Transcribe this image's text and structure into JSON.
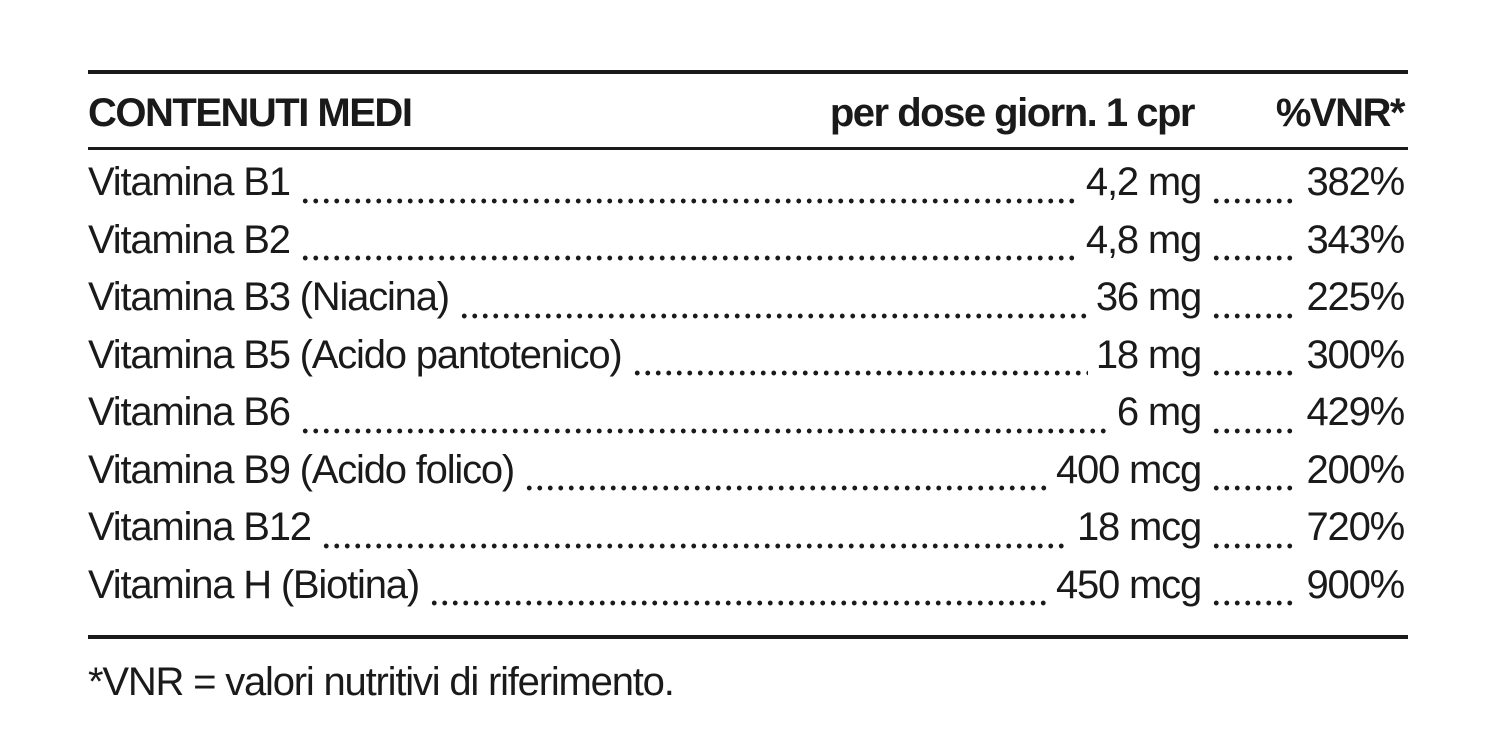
{
  "header": {
    "name": "CONTENUTI MEDI",
    "amount": "per dose giorn. 1 cpr",
    "vnr": "%VNR*"
  },
  "rows": [
    {
      "name": "Vitamina B1",
      "amount": "4,2 mg",
      "vnr": "382%"
    },
    {
      "name": "Vitamina B2",
      "amount": "4,8 mg",
      "vnr": "343%"
    },
    {
      "name": "Vitamina B3 (Niacina)",
      "amount": "36 mg",
      "vnr": "225%"
    },
    {
      "name": "Vitamina B5 (Acido pantotenico)",
      "amount": "18 mg",
      "vnr": "300%"
    },
    {
      "name": "Vitamina B6",
      "amount": "6 mg",
      "vnr": "429%"
    },
    {
      "name": "Vitamina B9 (Acido folico)",
      "amount": "400 mcg",
      "vnr": "200%"
    },
    {
      "name": "Vitamina B12",
      "amount": "18 mcg",
      "vnr": "720%"
    },
    {
      "name": "Vitamina H (Biotina)",
      "amount": "450 mcg",
      "vnr": "900%"
    }
  ],
  "footnote": "*VNR = valori nutritivi di riferimento."
}
